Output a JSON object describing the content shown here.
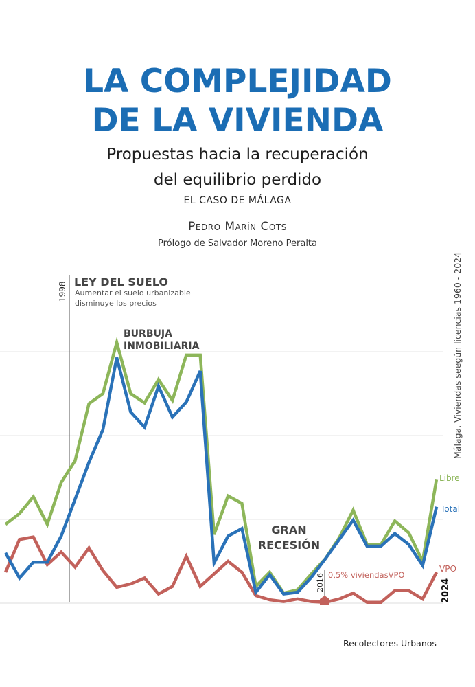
{
  "cover": {
    "title_line1": "LA COMPLEJIDAD",
    "title_line2": "DE LA VIVIENDA",
    "subtitle_line1": "Propuestas hacia la recuperación",
    "subtitle_line2": "del equilibrio perdido",
    "case": "EL CASO DE MÁLAGA",
    "author": "Pedro Marín Cots",
    "prologue": "Prólogo de Salvador Moreno Peralta",
    "publisher": "Recolectores Urbanos",
    "title_color": "#1b6db4"
  },
  "chart_data": {
    "type": "line",
    "title": "Málaga, Viviendas seegún licencias 1960 - 2024",
    "xlabel": "",
    "ylabel": "",
    "grid": true,
    "legend": "right end labels",
    "x": [
      1993,
      1994,
      1995,
      1996,
      1997,
      1998,
      1999,
      2000,
      2001,
      2002,
      2003,
      2004,
      2005,
      2006,
      2007,
      2008,
      2009,
      2010,
      2011,
      2012,
      2013,
      2014,
      2015,
      2016,
      2017,
      2018,
      2019,
      2020,
      2021,
      2022,
      2023,
      2024
    ],
    "xlim": [
      1992.6,
      2024
    ],
    "ylim": [
      0,
      3.2
    ],
    "series": [
      {
        "name": "Libre",
        "color": "#8db65a",
        "values": [
          0.94,
          1.07,
          1.27,
          0.94,
          1.44,
          1.7,
          2.38,
          2.5,
          3.11,
          2.5,
          2.39,
          2.67,
          2.42,
          2.96,
          2.96,
          0.82,
          1.28,
          1.19,
          0.2,
          0.37,
          0.12,
          0.16,
          0.35,
          0.53,
          0.78,
          1.11,
          0.7,
          0.7,
          0.98,
          0.84,
          0.5,
          1.48
        ]
      },
      {
        "name": "Total",
        "color": "#2a72b8",
        "values": [
          0.6,
          0.3,
          0.49,
          0.49,
          0.8,
          1.24,
          1.68,
          2.07,
          2.93,
          2.28,
          2.1,
          2.59,
          2.22,
          2.4,
          2.77,
          0.48,
          0.8,
          0.89,
          0.13,
          0.34,
          0.11,
          0.13,
          0.31,
          0.53,
          0.76,
          0.99,
          0.68,
          0.68,
          0.83,
          0.7,
          0.45,
          1.15
        ]
      },
      {
        "name": "VPO",
        "color": "#c2615b",
        "values": [
          0.37,
          0.76,
          0.79,
          0.46,
          0.61,
          0.43,
          0.66,
          0.39,
          0.19,
          0.23,
          0.3,
          0.11,
          0.2,
          0.56,
          0.2,
          0.35,
          0.5,
          0.37,
          0.09,
          0.04,
          0.02,
          0.05,
          0.02,
          0.01,
          0.05,
          0.12,
          0.01,
          0.01,
          0.15,
          0.15,
          0.05,
          0.37
        ]
      }
    ],
    "annotations": {
      "ley_year": "1998",
      "ley_title": "LEY DEL SUELO",
      "ley_text1": "Aumentar el suelo urbanizable",
      "ley_text2": "disminuye los precios",
      "burbuja1": "BURBUJA",
      "burbuja2": "INMOBILIARIA",
      "recesion1": "GRAN",
      "recesion2": "RECESIÓN",
      "vpo_year": "2016",
      "vpo_note": "0,5% viviendasVPO",
      "end_year": "2024"
    }
  }
}
